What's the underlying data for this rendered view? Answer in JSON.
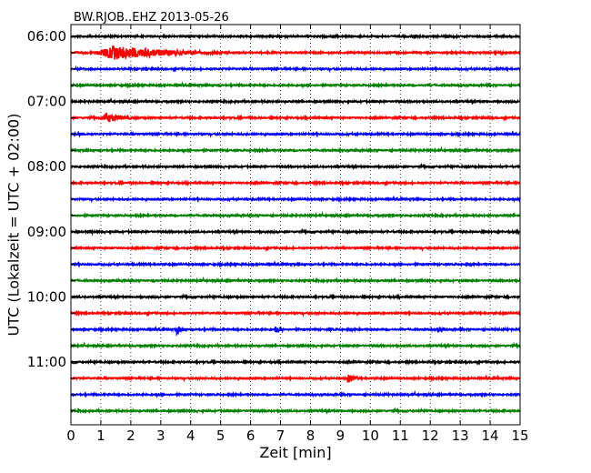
{
  "chart_data": {
    "type": "line",
    "title": "BW.RJOB..EHZ 2013-05-26",
    "xlabel": "Zeit  [min]",
    "ylabel": "UTC (Lokalzeit = UTC + 02:00)",
    "xlim": [
      0,
      15
    ],
    "x_ticks": [
      "0",
      "1",
      "2",
      "3",
      "4",
      "5",
      "6",
      "7",
      "8",
      "9",
      "10",
      "11",
      "12",
      "13",
      "14",
      "15"
    ],
    "y_tick_labels": [
      "06:00",
      "07:00",
      "08:00",
      "09:00",
      "10:00",
      "11:00"
    ],
    "grid": "vertical dotted",
    "rows_per_hour": 4,
    "row_start_times": [
      "06:00",
      "06:15",
      "06:30",
      "06:45",
      "07:00",
      "07:15",
      "07:30",
      "07:45",
      "08:00",
      "08:15",
      "08:30",
      "08:45",
      "09:00",
      "09:15",
      "09:30",
      "09:45",
      "10:00",
      "10:15",
      "10:30",
      "10:45",
      "11:00",
      "11:15",
      "11:30",
      "11:45"
    ],
    "series_colors": [
      "#000000",
      "#ff0000",
      "#0000ff",
      "#008000"
    ],
    "events": [
      {
        "row": 1,
        "x_start": 0.75,
        "x_end": 7.0,
        "amplitude": "large"
      },
      {
        "row": 5,
        "x_start": 1.0,
        "x_end": 2.7,
        "amplitude": "medium"
      },
      {
        "row": 6,
        "x_start": 0.2,
        "x_end": 0.8,
        "amplitude": "small"
      },
      {
        "row": 18,
        "x_start": 3.5,
        "x_end": 3.9,
        "amplitude": "medium"
      },
      {
        "row": 18,
        "x_start": 6.8,
        "x_end": 7.3,
        "amplitude": "medium"
      },
      {
        "row": 18,
        "x_start": 8.6,
        "x_end": 8.9,
        "amplitude": "small"
      },
      {
        "row": 18,
        "x_start": 12.2,
        "x_end": 12.8,
        "amplitude": "small"
      },
      {
        "row": 21,
        "x_start": 9.2,
        "x_end": 9.8,
        "amplitude": "medium"
      }
    ]
  }
}
